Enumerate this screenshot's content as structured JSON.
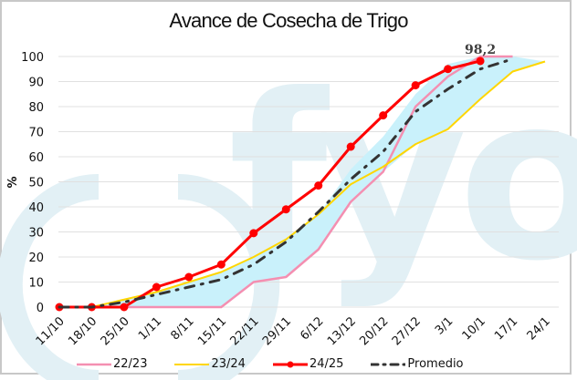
{
  "title": "Avance de Cosecha de Trigo",
  "annotation": "98,2",
  "watermark": "( fyo",
  "yaxis_label": "%",
  "colors": {
    "s2223": "#f48fb1",
    "s2324": "#ffd600",
    "s2425": "#ff0000",
    "promedio": "#333333",
    "band": "#c9f1fb",
    "watermark": "#e2f0f5",
    "grid": "#e0e0e0"
  },
  "legend": [
    {
      "key": "s2223",
      "label": "22/23"
    },
    {
      "key": "s2324",
      "label": "23/24"
    },
    {
      "key": "s2425",
      "label": "24/25"
    },
    {
      "key": "promedio",
      "label": "Promedio"
    }
  ],
  "chart_data": {
    "type": "line",
    "title": "Avance de Cosecha de Trigo",
    "xlabel": "",
    "ylabel": "%",
    "ylim": [
      0,
      100
    ],
    "yticks": [
      0,
      10,
      20,
      30,
      40,
      50,
      60,
      70,
      80,
      90,
      100
    ],
    "grid": true,
    "legend_position": "bottom",
    "categories": [
      "11/10",
      "18/10",
      "25/10",
      "1/11",
      "8/11",
      "15/11",
      "22/11",
      "29/11",
      "6/12",
      "13/12",
      "20/12",
      "27/12",
      "3/1",
      "10/1",
      "17/1",
      "24/1"
    ],
    "series": [
      {
        "name": "22/23",
        "values": [
          0,
          0,
          0,
          0,
          0,
          0,
          10,
          12,
          23,
          42,
          54,
          80,
          92,
          100,
          100,
          null
        ]
      },
      {
        "name": "23/24",
        "values": [
          0,
          0,
          3,
          6,
          10,
          14,
          20,
          27,
          37,
          49,
          56,
          65,
          71,
          83,
          94,
          98
        ]
      },
      {
        "name": "24/25",
        "values": [
          0,
          0,
          0,
          8,
          12,
          17,
          29.5,
          39,
          48.5,
          64,
          76.5,
          88.5,
          95,
          98.2,
          null,
          null
        ]
      },
      {
        "name": "Promedio",
        "values": [
          0,
          0,
          2,
          5,
          8,
          11,
          17,
          26,
          38,
          51,
          62,
          78,
          87,
          95,
          99,
          null
        ]
      }
    ],
    "band": {
      "description": "min-max range of prior seasons (shaded light blue)",
      "upper": [
        0,
        0,
        3,
        6,
        10,
        14,
        20,
        27,
        37,
        55,
        68,
        85,
        97,
        100,
        100,
        98
      ],
      "lower": [
        0,
        0,
        0,
        0,
        0,
        0,
        10,
        12,
        23,
        42,
        54,
        65,
        71,
        83,
        94,
        98
      ]
    },
    "annotations": [
      {
        "x": "10/1",
        "y": 98.2,
        "text": "98,2"
      }
    ]
  }
}
